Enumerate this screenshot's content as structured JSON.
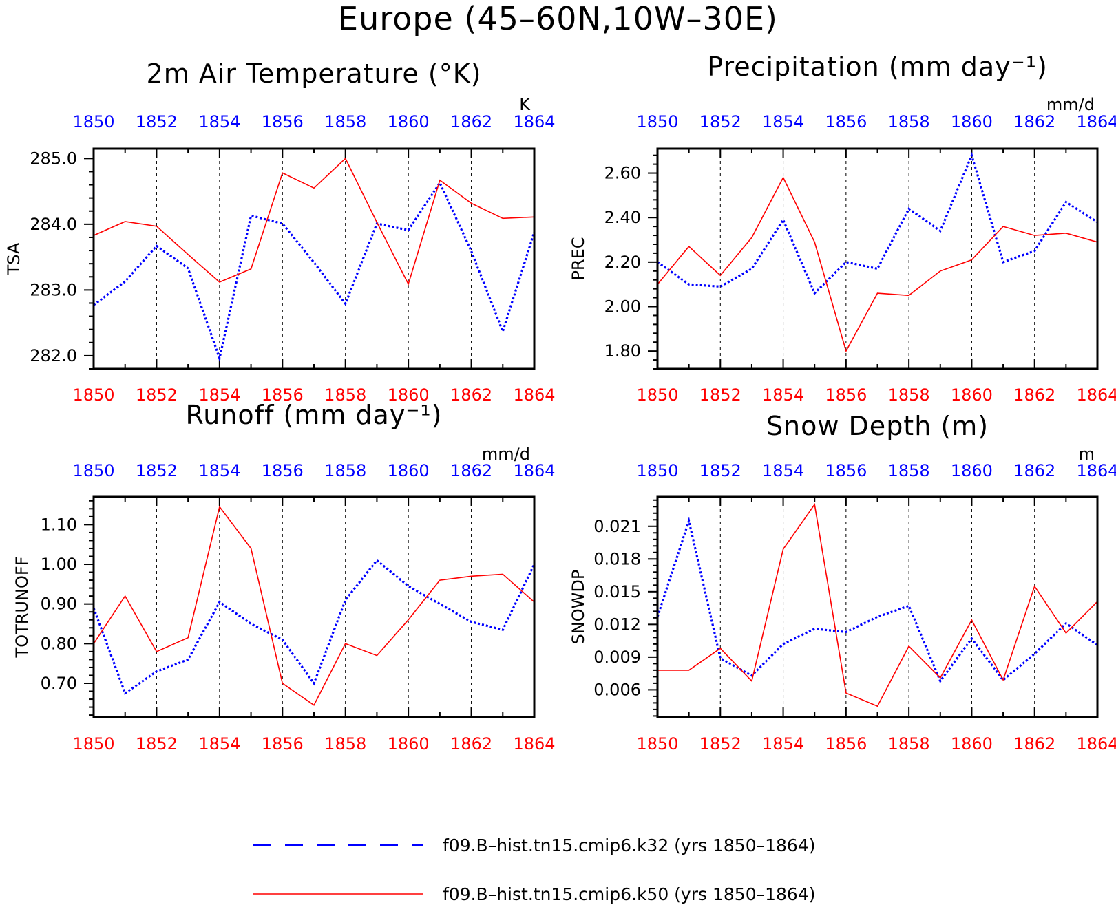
{
  "title": "Europe (45–60N,10W–30E)",
  "colors": {
    "k32": "#0000ff",
    "k50": "#ff0000",
    "axis": "#000000"
  },
  "chart_data": [
    {
      "type": "line",
      "title": "2m Air Temperature (°K)",
      "ylabel": "TSA",
      "units": "K",
      "ylim": [
        281.8,
        285.15
      ],
      "yticks": [
        282.0,
        283.0,
        284.0,
        285.0
      ],
      "ytick_labels": [
        "282.0",
        "283.0",
        "284.0",
        "285.0"
      ],
      "xticks": [
        1850,
        1852,
        1854,
        1856,
        1858,
        1860,
        1862,
        1864
      ],
      "x": [
        1850,
        1851,
        1852,
        1853,
        1854,
        1855,
        1856,
        1857,
        1858,
        1859,
        1860,
        1861,
        1862,
        1863,
        1864
      ],
      "series": [
        {
          "id": "k32",
          "values": [
            282.77,
            283.13,
            283.67,
            283.33,
            281.96,
            284.13,
            284.01,
            283.42,
            282.79,
            284.01,
            283.91,
            284.63,
            283.59,
            282.37,
            283.88
          ]
        },
        {
          "id": "k50",
          "values": [
            283.83,
            284.04,
            283.97,
            283.54,
            283.12,
            283.32,
            284.78,
            284.55,
            285.0,
            284.03,
            283.09,
            284.67,
            284.32,
            284.09,
            284.11
          ]
        }
      ]
    },
    {
      "type": "line",
      "title": "Precipitation (mm day⁻¹)",
      "ylabel": "PREC",
      "units": "mm/d",
      "ylim": [
        1.72,
        2.71
      ],
      "yticks": [
        1.8,
        2.0,
        2.2,
        2.4,
        2.6
      ],
      "ytick_labels": [
        "1.80",
        "2.00",
        "2.20",
        "2.40",
        "2.60"
      ],
      "xticks": [
        1850,
        1852,
        1854,
        1856,
        1858,
        1860,
        1862,
        1864
      ],
      "x": [
        1850,
        1851,
        1852,
        1853,
        1854,
        1855,
        1856,
        1857,
        1858,
        1859,
        1860,
        1861,
        1862,
        1863,
        1864
      ],
      "series": [
        {
          "id": "k32",
          "values": [
            2.2,
            2.1,
            2.09,
            2.17,
            2.39,
            2.06,
            2.2,
            2.17,
            2.44,
            2.34,
            2.68,
            2.2,
            2.25,
            2.47,
            2.38
          ]
        },
        {
          "id": "k50",
          "values": [
            2.1,
            2.27,
            2.14,
            2.31,
            2.58,
            2.29,
            1.8,
            2.06,
            2.05,
            2.16,
            2.21,
            2.36,
            2.32,
            2.33,
            2.29
          ]
        }
      ]
    },
    {
      "type": "line",
      "title": "Runoff (mm day⁻¹)",
      "ylabel": "TOTRUNOFF",
      "units": "mm/d",
      "ylim": [
        0.615,
        1.17
      ],
      "yticks": [
        0.7,
        0.8,
        0.9,
        1.0,
        1.1
      ],
      "ytick_labels": [
        "0.70",
        "0.80",
        "0.90",
        "1.00",
        "1.10"
      ],
      "xticks": [
        1850,
        1852,
        1854,
        1856,
        1858,
        1860,
        1862,
        1864
      ],
      "x": [
        1850,
        1851,
        1852,
        1853,
        1854,
        1855,
        1856,
        1857,
        1858,
        1859,
        1860,
        1861,
        1862,
        1863,
        1864
      ],
      "series": [
        {
          "id": "k32",
          "values": [
            0.89,
            0.675,
            0.73,
            0.76,
            0.905,
            0.85,
            0.81,
            0.7,
            0.91,
            1.01,
            0.945,
            0.9,
            0.855,
            0.835,
            1.0
          ]
        },
        {
          "id": "k50",
          "values": [
            0.8,
            0.92,
            0.78,
            0.815,
            1.145,
            1.04,
            0.7,
            0.645,
            0.8,
            0.77,
            0.86,
            0.96,
            0.97,
            0.975,
            0.905
          ]
        }
      ]
    },
    {
      "type": "line",
      "title": "Snow Depth (m)",
      "ylabel": "SNOWDP",
      "units": "m",
      "ylim": [
        0.0035,
        0.0237
      ],
      "yticks": [
        0.006,
        0.009,
        0.012,
        0.015,
        0.018,
        0.021
      ],
      "ytick_labels": [
        "0.006",
        "0.009",
        "0.012",
        "0.015",
        "0.018",
        "0.021"
      ],
      "xticks": [
        1850,
        1852,
        1854,
        1856,
        1858,
        1860,
        1862,
        1864
      ],
      "x": [
        1850,
        1851,
        1852,
        1853,
        1854,
        1855,
        1856,
        1857,
        1858,
        1859,
        1860,
        1861,
        1862,
        1863,
        1864
      ],
      "series": [
        {
          "id": "k32",
          "values": [
            0.0127,
            0.0215,
            0.0089,
            0.0073,
            0.0102,
            0.0116,
            0.0113,
            0.0127,
            0.0137,
            0.0068,
            0.0107,
            0.0069,
            0.0093,
            0.0121,
            0.0101
          ]
        },
        {
          "id": "k50",
          "values": [
            0.0078,
            0.0078,
            0.0098,
            0.0068,
            0.0189,
            0.023,
            0.0057,
            0.0045,
            0.01,
            0.0071,
            0.0124,
            0.0069,
            0.0155,
            0.0112,
            0.0141
          ]
        }
      ]
    }
  ],
  "legend": [
    {
      "id": "k32",
      "label": "f09.B–hist.tn15.cmip6.k32 (yrs 1850–1864)"
    },
    {
      "id": "k50",
      "label": "f09.B–hist.tn15.cmip6.k50 (yrs 1850–1864)"
    }
  ]
}
